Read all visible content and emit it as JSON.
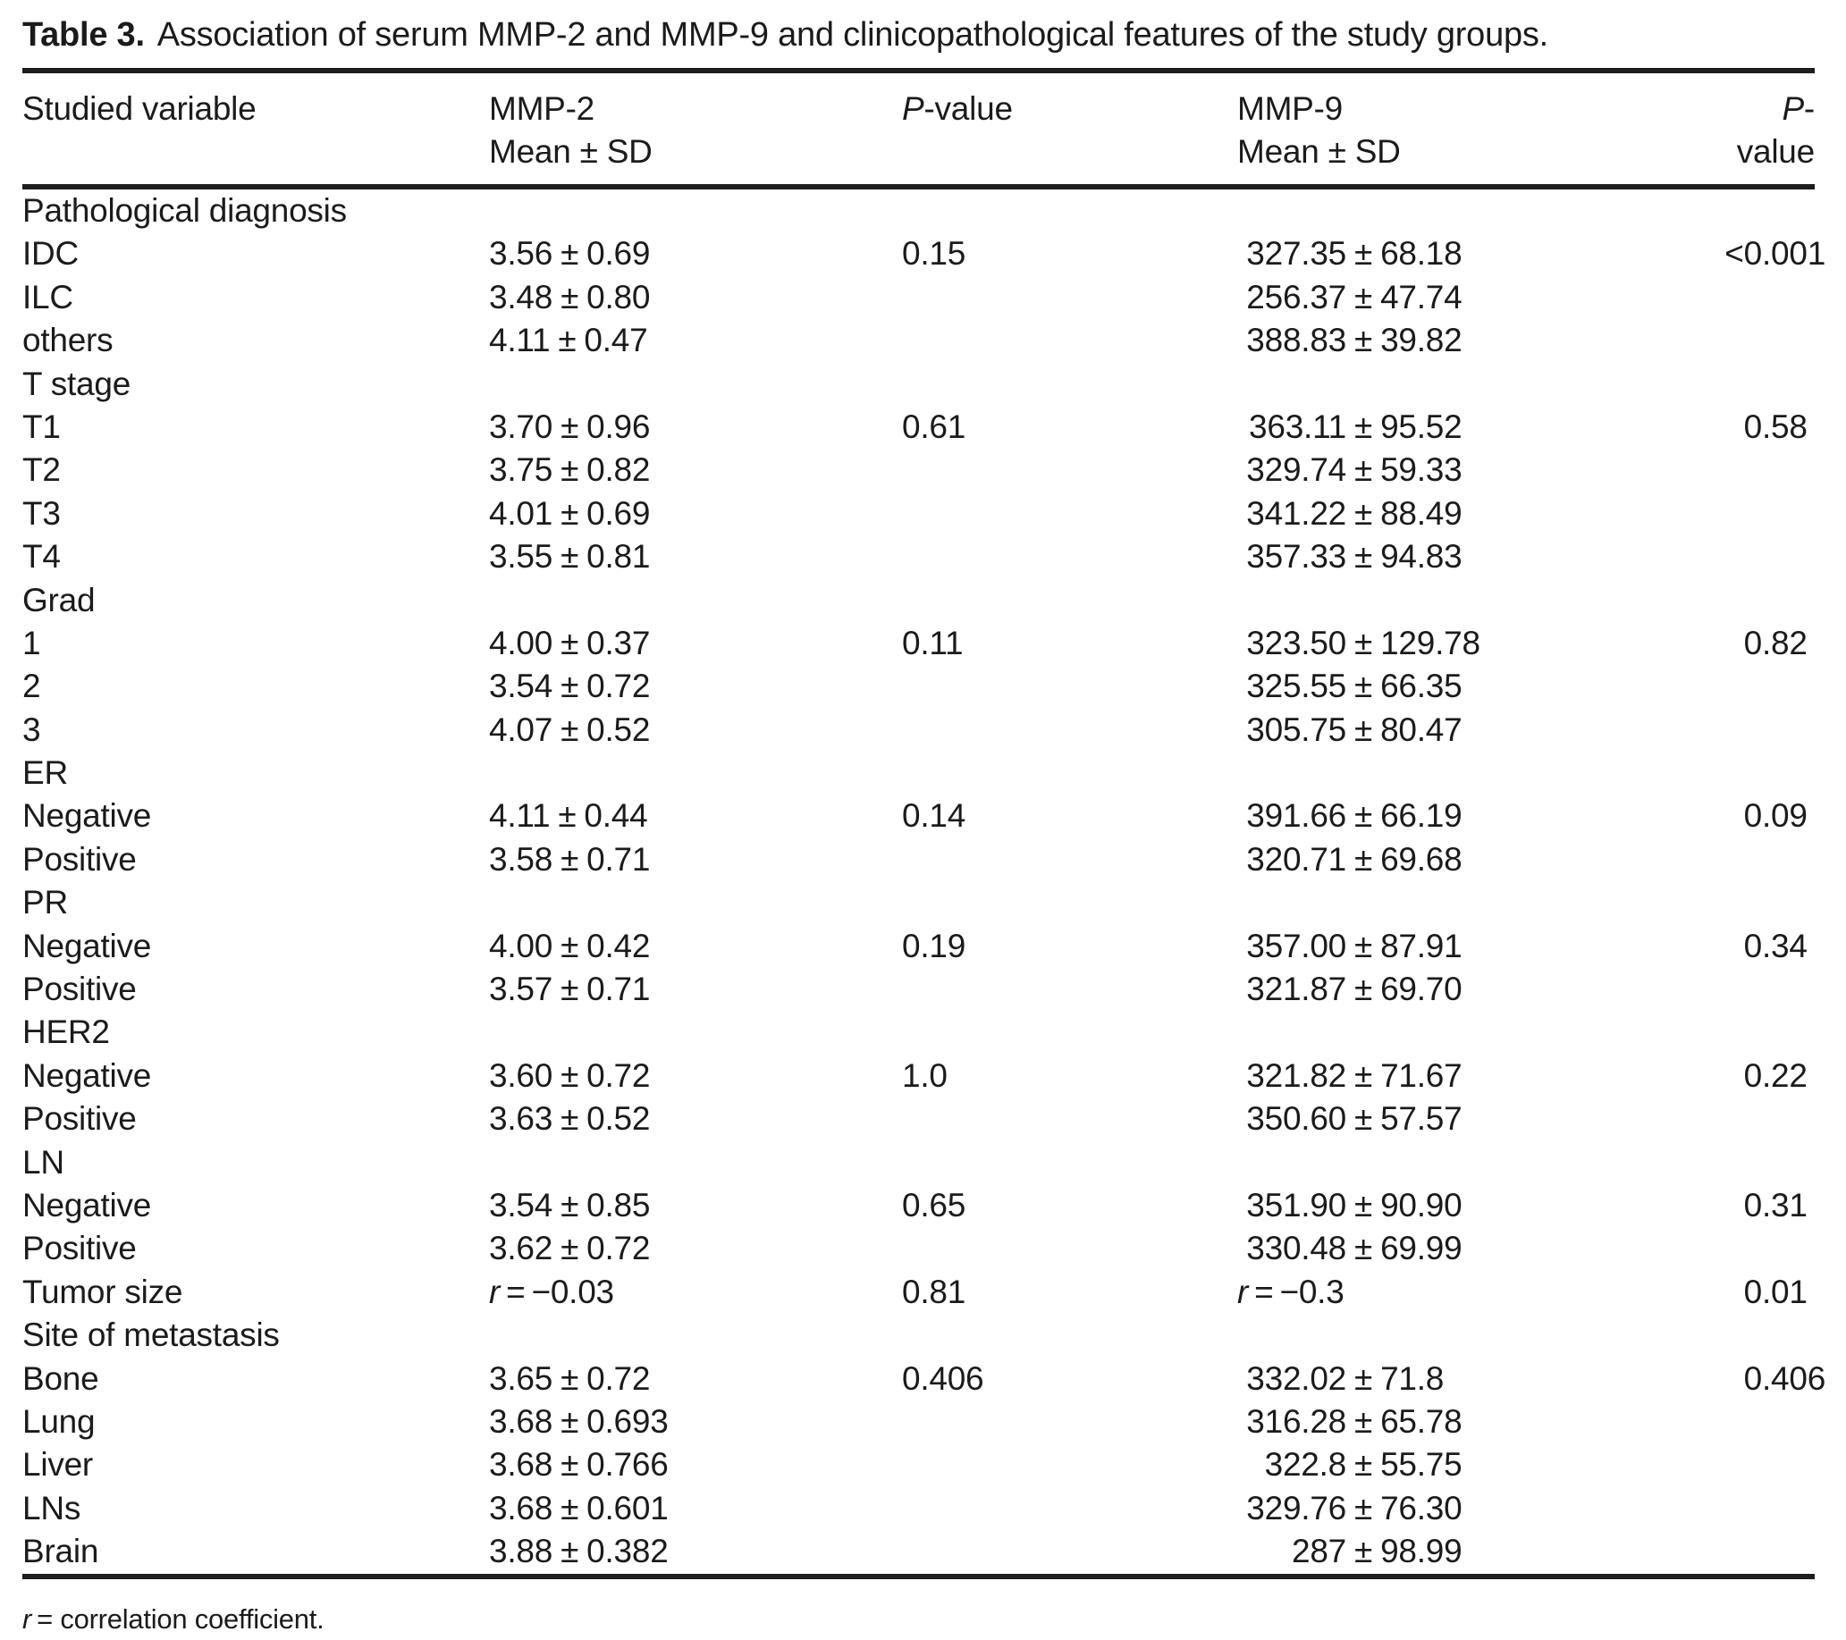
{
  "title": {
    "label": "Table 3.",
    "text": "Association of serum MMP-2 and MMP-9 and clinicopathological features of the study groups."
  },
  "header": {
    "col1": "Studied variable",
    "col2": {
      "line1": "MMP-2",
      "line2": "Mean ± SD"
    },
    "col3": {
      "italic": "P",
      "rest": "-value"
    },
    "col4": {
      "line1": "MMP-9",
      "line2": "Mean ± SD"
    },
    "col5": {
      "italic": "P",
      "rest": "-value"
    }
  },
  "symbols": {
    "pm": "±",
    "r": "r",
    "eq": "="
  },
  "rows": [
    {
      "section": true,
      "label": "Pathological diagnosis"
    },
    {
      "label": "IDC",
      "mmp2": {
        "mean": "3.56",
        "sd": "0.69"
      },
      "p1": "0.15",
      "mmp9": {
        "mean": "327.35",
        "sd": "68.18"
      },
      "p2": "<0.001"
    },
    {
      "label": "ILC",
      "mmp2": {
        "mean": "3.48",
        "sd": "0.80"
      },
      "mmp9": {
        "mean": "256.37",
        "sd": "47.74"
      }
    },
    {
      "label": "others",
      "mmp2": {
        "mean": "4.11",
        "sd": "0.47"
      },
      "mmp9": {
        "mean": "388.83",
        "sd": "39.82"
      }
    },
    {
      "section": true,
      "label": "T stage"
    },
    {
      "label": "T1",
      "mmp2": {
        "mean": "3.70",
        "sd": "0.96"
      },
      "p1": "0.61",
      "mmp9": {
        "mean": "363.11",
        "sd": "95.52"
      },
      "p2": "0.58"
    },
    {
      "label": "T2",
      "mmp2": {
        "mean": "3.75",
        "sd": "0.82"
      },
      "mmp9": {
        "mean": "329.74",
        "sd": "59.33"
      }
    },
    {
      "label": "T3",
      "mmp2": {
        "mean": "4.01",
        "sd": "0.69"
      },
      "mmp9": {
        "mean": "341.22",
        "sd": "88.49"
      }
    },
    {
      "label": "T4",
      "mmp2": {
        "mean": "3.55",
        "sd": "0.81"
      },
      "mmp9": {
        "mean": "357.33",
        "sd": "94.83"
      }
    },
    {
      "section": true,
      "label": "Grad"
    },
    {
      "label": "1",
      "mmp2": {
        "mean": "4.00",
        "sd": "0.37"
      },
      "p1": "0.11",
      "mmp9": {
        "mean": "323.50",
        "sd": "129.78"
      },
      "p2": "0.82"
    },
    {
      "label": "2",
      "mmp2": {
        "mean": "3.54",
        "sd": "0.72"
      },
      "mmp9": {
        "mean": "325.55",
        "sd": "66.35"
      }
    },
    {
      "label": "3",
      "mmp2": {
        "mean": "4.07",
        "sd": "0.52"
      },
      "mmp9": {
        "mean": "305.75",
        "sd": "80.47"
      }
    },
    {
      "section": true,
      "label": "ER"
    },
    {
      "label": "Negative",
      "mmp2": {
        "mean": "4.11",
        "sd": "0.44"
      },
      "p1": "0.14",
      "mmp9": {
        "mean": "391.66",
        "sd": "66.19"
      },
      "p2": "0.09"
    },
    {
      "label": "Positive",
      "mmp2": {
        "mean": "3.58",
        "sd": "0.71"
      },
      "mmp9": {
        "mean": "320.71",
        "sd": "69.68"
      }
    },
    {
      "section": true,
      "label": "PR"
    },
    {
      "label": "Negative",
      "mmp2": {
        "mean": "4.00",
        "sd": "0.42"
      },
      "p1": "0.19",
      "mmp9": {
        "mean": "357.00",
        "sd": "87.91"
      },
      "p2": "0.34"
    },
    {
      "label": "Positive",
      "mmp2": {
        "mean": "3.57",
        "sd": "0.71"
      },
      "mmp9": {
        "mean": "321.87",
        "sd": "69.70"
      }
    },
    {
      "section": true,
      "label": "HER2"
    },
    {
      "label": "Negative",
      "mmp2": {
        "mean": "3.60",
        "sd": "0.72"
      },
      "p1": "1.0",
      "mmp9": {
        "mean": "321.82",
        "sd": "71.67"
      },
      "p2": "0.22"
    },
    {
      "label": "Positive",
      "mmp2": {
        "mean": "3.63",
        "sd": "0.52"
      },
      "mmp9": {
        "mean": "350.60",
        "sd": "57.57"
      }
    },
    {
      "section": true,
      "label": "LN"
    },
    {
      "label": "Negative",
      "mmp2": {
        "mean": "3.54",
        "sd": "0.85"
      },
      "p1": "0.65",
      "mmp9": {
        "mean": "351.90",
        "sd": "90.90"
      },
      "p2": "0.31"
    },
    {
      "label": "Positive",
      "mmp2": {
        "mean": "3.62",
        "sd": "0.72"
      },
      "mmp9": {
        "mean": "330.48",
        "sd": "69.99"
      }
    },
    {
      "label": "Tumor size",
      "mmp2": {
        "r_value": "−0.03"
      },
      "p1": "0.81",
      "mmp9": {
        "r_value": "−0.3"
      },
      "p2": "0.01"
    },
    {
      "section": true,
      "label": "Site of metastasis"
    },
    {
      "label": "Bone",
      "mmp2": {
        "mean": "3.65",
        "sd": "0.72"
      },
      "p1": "0.406",
      "mmp9": {
        "mean": "332.02",
        "sd": "71.8"
      },
      "p2": "0.406"
    },
    {
      "label": "Lung",
      "mmp2": {
        "mean": "3.68",
        "sd": "0.693"
      },
      "mmp9": {
        "mean": "316.28",
        "sd": "65.78"
      }
    },
    {
      "label": "Liver",
      "mmp2": {
        "mean": "3.68",
        "sd": "0.766"
      },
      "mmp9": {
        "mean": "322.8",
        "sd": "55.75"
      }
    },
    {
      "label": "LNs",
      "mmp2": {
        "mean": "3.68",
        "sd": "0.601"
      },
      "mmp9": {
        "mean": "329.76",
        "sd": "76.30"
      }
    },
    {
      "label": "Brain",
      "mmp2": {
        "mean": "3.88",
        "sd": "0.382"
      },
      "mmp9": {
        "mean": "287",
        "sd": "98.99"
      }
    }
  ],
  "footnote": {
    "r": "r",
    "rest": "= correlation coefficient."
  }
}
